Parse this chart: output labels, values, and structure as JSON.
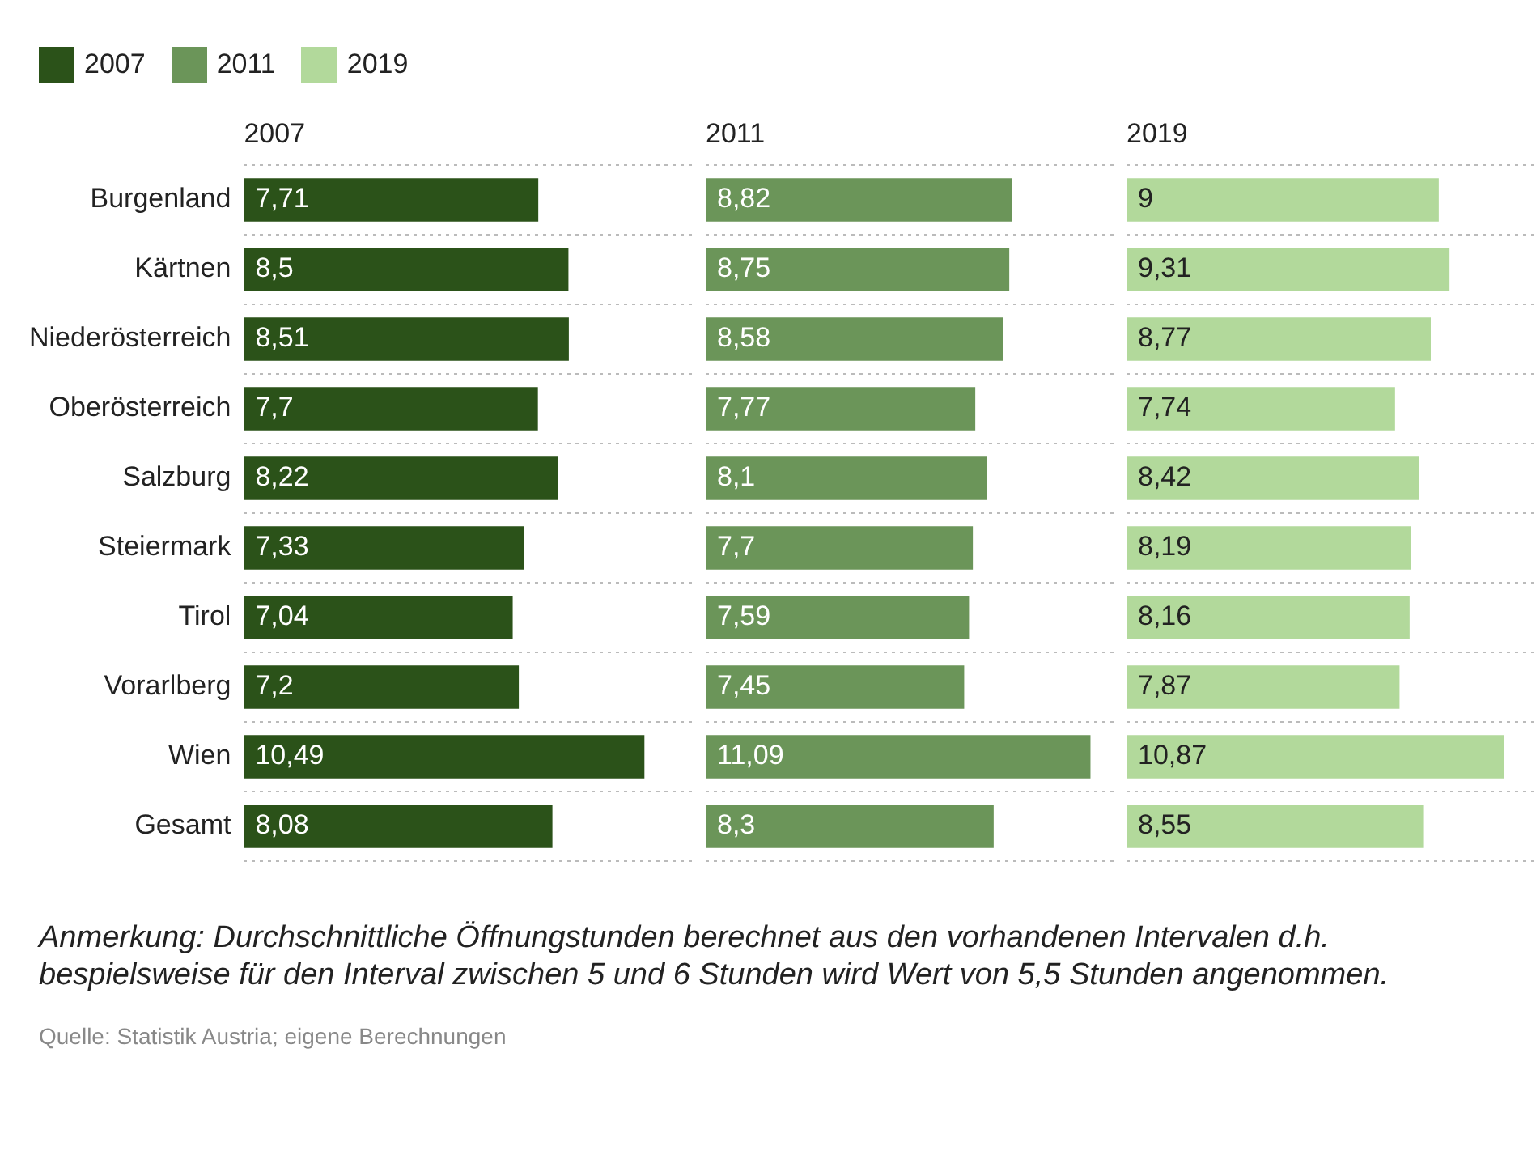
{
  "chart_data": [
    {
      "type": "bar",
      "orientation": "horizontal",
      "title": "2007",
      "legend": "top left",
      "grid": "y",
      "tick_labels": "y",
      "categories": [
        "Burgenland",
        "Kärtnen",
        "Niederösterreich",
        "Oberösterreich",
        "Salzburg",
        "Steiermark",
        "Tirol",
        "Vorarlberg",
        "Wien",
        "Gesamt"
      ],
      "series": [
        {
          "name": "2007",
          "color": "#2b5219",
          "values": [
            7.71,
            8.5,
            8.51,
            7.7,
            8.22,
            7.33,
            7.04,
            7.2,
            10.49,
            8.08
          ],
          "value_labels": [
            "7,71",
            "8,5",
            "8,51",
            "7,7",
            "8,22",
            "7,33",
            "7,04",
            "7,2",
            "10,49",
            "8,08"
          ]
        }
      ]
    },
    {
      "type": "bar",
      "orientation": "horizontal",
      "title": "2011",
      "legend": "top left",
      "grid": "y",
      "tick_labels": false,
      "categories": [
        null,
        null,
        null,
        null,
        null,
        null,
        null,
        null,
        null,
        null
      ],
      "series": [
        {
          "name": "2011",
          "color": "#6b9559",
          "values": [
            8.82,
            8.75,
            8.58,
            7.77,
            8.1,
            7.7,
            7.59,
            7.45,
            11.09,
            8.3
          ],
          "value_labels": [
            "8,82",
            "8,75",
            "8,58",
            "7,77",
            "8,1",
            "7,7",
            "7,59",
            "7,45",
            "11,09",
            "8,3"
          ]
        }
      ]
    },
    {
      "type": "bar",
      "orientation": "horizontal",
      "title": "2019",
      "legend": "top left",
      "grid": "y",
      "tick_labels": false,
      "categories": [
        null,
        null,
        null,
        null,
        null,
        null,
        null,
        null,
        null,
        null
      ],
      "series": [
        {
          "name": "2019",
          "color": "#b2d99b",
          "values": [
            9,
            9.31,
            8.77,
            7.74,
            8.42,
            8.19,
            8.16,
            7.87,
            10.87,
            8.55
          ],
          "value_labels": [
            "9",
            "9,31",
            "8,77",
            "7,74",
            "8,42",
            "8,19",
            "8,16",
            "7,87",
            "10,87",
            "8,55"
          ]
        }
      ],
      "annotations": [
        "Anmerkung: Durchschnittliche Öffnungstunden berechnet aus den vorhandenen Intervalen d.h. bespielsweise für den Interval zwischen 5 und 6 Stunden wird Wert von 5,5 Stunden angenommen.",
        "Quelle: Statistik Austria; eigene Berechnungen"
      ]
    }
  ]
}
